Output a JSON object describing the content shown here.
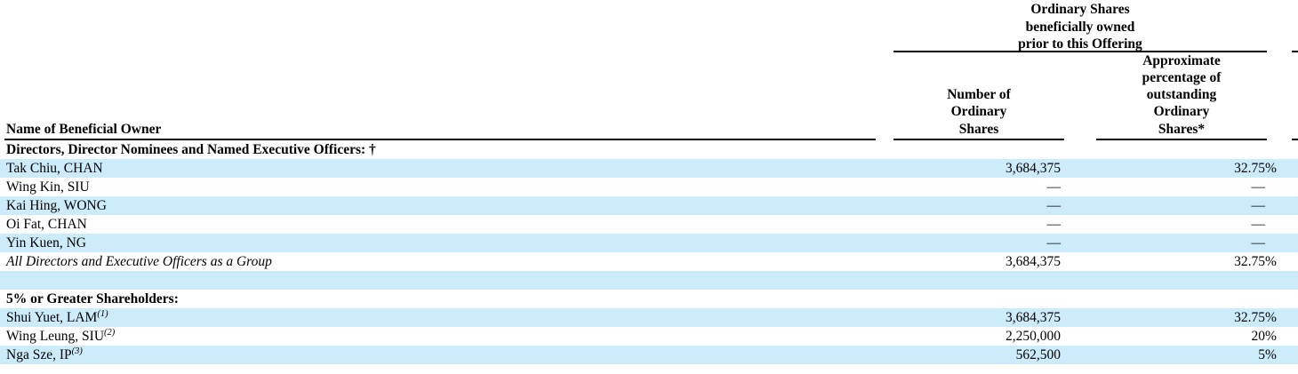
{
  "page": {
    "background_color": "#ffffff",
    "row_highlight_color": "#ccebfb",
    "text_color": "#000000"
  },
  "table": {
    "group_header": "Ordinary Shares\nbeneficially owned\nprior to this Offering",
    "name_column_header": "Name of Beneficial Owner",
    "shares_column_header": "Number of\nOrdinary\nShares",
    "pct_column_header": "Approximate\npercentage of\noutstanding\nOrdinary\nShares*",
    "rows": [
      {
        "name": "Directors, Director Nominees and Named Executive Officers: †",
        "shares": "",
        "pct": "",
        "pct_unit": ""
      },
      {
        "name": "Tak Chiu, CHAN",
        "shares": "3,684,375",
        "pct": "32.75",
        "pct_unit": "%"
      },
      {
        "name": "Wing Kin, SIU",
        "shares": "—",
        "pct": "—",
        "pct_unit": ""
      },
      {
        "name": "Kai Hing, WONG",
        "shares": "—",
        "pct": "—",
        "pct_unit": ""
      },
      {
        "name": "Oi Fat, CHAN",
        "shares": "—",
        "pct": "—",
        "pct_unit": ""
      },
      {
        "name": "Yin Kuen, NG",
        "shares": "—",
        "pct": "—",
        "pct_unit": ""
      },
      {
        "name": "All Directors and Executive Officers as a Group",
        "shares": "3,684,375",
        "pct": "32.75",
        "pct_unit": "%"
      },
      {
        "name": "",
        "shares": "",
        "pct": "",
        "pct_unit": ""
      },
      {
        "name": "5% or Greater Shareholders:",
        "shares": "",
        "pct": "",
        "pct_unit": ""
      },
      {
        "name": "Shui Yuet, LAM",
        "sup": "(1)",
        "shares": "3,684,375",
        "pct": "32.75",
        "pct_unit": "%"
      },
      {
        "name": "Wing Leung, SIU",
        "sup": "(2)",
        "shares": "2,250,000",
        "pct": "20",
        "pct_unit": "%"
      },
      {
        "name": "Nga Sze, IP",
        "sup": "(3)",
        "shares": "562,500",
        "pct": "5",
        "pct_unit": "%"
      }
    ]
  }
}
